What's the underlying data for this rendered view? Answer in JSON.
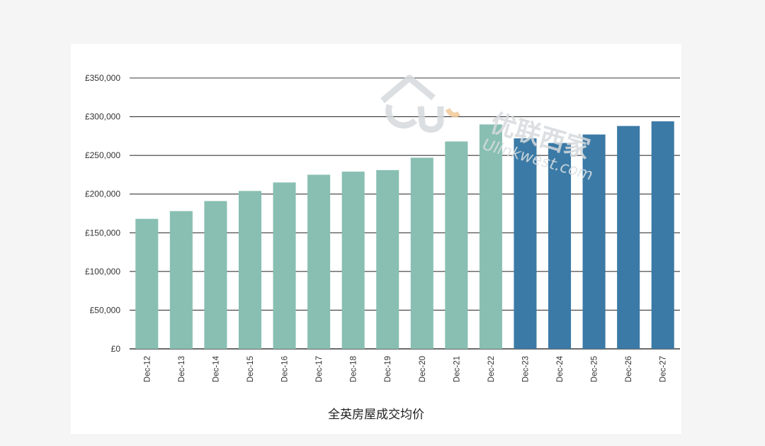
{
  "chart_data": {
    "type": "bar",
    "title": "全英房屋成交均价",
    "xlabel": "",
    "ylabel": "",
    "ylim": [
      0,
      350000
    ],
    "yticks": [
      "£350,000",
      "£300,000",
      "£250,000",
      "£200,000",
      "£150,000",
      "£100,000",
      "£50,000",
      "£0"
    ],
    "ytick_values": [
      350000,
      300000,
      250000,
      200000,
      150000,
      100000,
      50000,
      0
    ],
    "grid": "horizontal",
    "legend": "none",
    "categories": [
      "Dec-12",
      "Dec-13",
      "Dec-14",
      "Dec-15",
      "Dec-16",
      "Dec-17",
      "Dec-18",
      "Dec-19",
      "Dec-20",
      "Dec-21",
      "Dec-22",
      "Dec-23",
      "Dec-24",
      "Dec-25",
      "Dec-26",
      "Dec-27"
    ],
    "values": [
      168000,
      178000,
      191000,
      204000,
      215000,
      225000,
      229000,
      231000,
      247000,
      268000,
      290000,
      272000,
      266000,
      277000,
      288000,
      294000
    ],
    "bar_colors": [
      "#88bfb2",
      "#88bfb2",
      "#88bfb2",
      "#88bfb2",
      "#88bfb2",
      "#88bfb2",
      "#88bfb2",
      "#88bfb2",
      "#88bfb2",
      "#88bfb2",
      "#88bfb2",
      "#3b7aa6",
      "#3b7aa6",
      "#3b7aa6",
      "#3b7aa6",
      "#3b7aa6"
    ]
  },
  "watermark": {
    "brand_cn": "优联西家",
    "brand_en": "Ulinkwest.com"
  },
  "colors": {
    "gridline": "#3a3a3a",
    "page_background": "#f4f5f4",
    "card_background": "#ffffff"
  }
}
